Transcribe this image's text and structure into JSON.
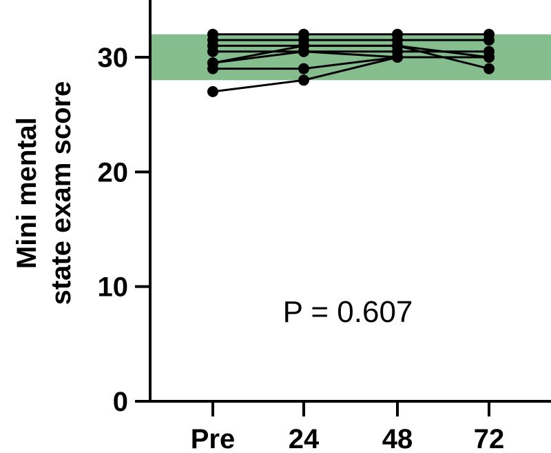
{
  "chart_data": {
    "type": "line",
    "ylabel_lines": [
      "Mini mental",
      "state exam score"
    ],
    "categories": [
      "Pre",
      "24",
      "48",
      "72"
    ],
    "y_ticks": [
      0,
      10,
      20,
      30
    ],
    "ylim": [
      0,
      35
    ],
    "normal_band": {
      "from": 28,
      "to": 32,
      "color": "#85bd8f"
    },
    "annotation": "P = 0.607",
    "line_color": "#000000",
    "series": [
      {
        "values": [
          32,
          32,
          32,
          32
        ]
      },
      {
        "values": [
          31.5,
          31.5,
          31.5,
          31.5
        ]
      },
      {
        "values": [
          31,
          31,
          31,
          30
        ]
      },
      {
        "values": [
          30.5,
          30.5,
          30.5,
          30.5
        ]
      },
      {
        "values": [
          29.5,
          30.5,
          30,
          30
        ]
      },
      {
        "values": [
          29.5,
          31,
          31,
          29
        ]
      },
      {
        "values": [
          29,
          29,
          30,
          30
        ]
      },
      {
        "values": [
          27,
          28,
          30,
          30
        ]
      }
    ]
  }
}
